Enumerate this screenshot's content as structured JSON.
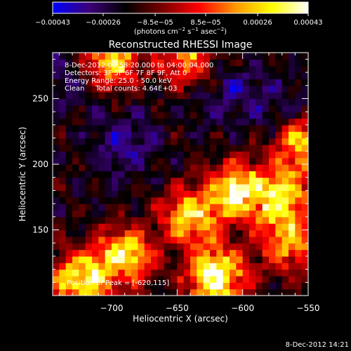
{
  "chart_data": {
    "type": "heatmap",
    "title": "Reconstructed RHESSI Image",
    "xlabel": "Heliocentric X (arcsec)",
    "ylabel": "Heliocentric Y (arcsec)",
    "x_range": [
      -745,
      -550
    ],
    "y_range": [
      100,
      285
    ],
    "x_ticks": [
      -700,
      -650,
      -600,
      -550
    ],
    "y_ticks": [
      150,
      200,
      250
    ],
    "x_tick_labels": [
      "−700",
      "−650",
      "−600",
      "−550"
    ],
    "y_tick_labels": [
      "150",
      "200",
      "250"
    ],
    "colorbar": {
      "range": [
        -0.00043,
        0.00043
      ],
      "ticks": [
        -0.00043,
        -0.00026,
        -8.5e-05,
        8.5e-05,
        0.00026,
        0.00043
      ],
      "tick_labels": [
        "−0.00043",
        "−0.00026",
        "−8.5e−05",
        "8.5e−05",
        "0.00026",
        "0.00043"
      ],
      "unit_label": {
        "prefix": "(photons cm",
        "exp1": "−2",
        "mid1": " s",
        "exp2": "−1",
        "mid2": " asec",
        "exp3": "−2",
        "suffix": ")"
      },
      "colors": [
        "#0000ff",
        "#3c0078",
        "#000000",
        "#780000",
        "#ff0000",
        "#ff9600",
        "#ffff00",
        "#ffffff"
      ]
    },
    "annotations": [
      "8-Dec-2012 03:58:20.000 to 04:00:04.000",
      "Detectors: 3F 5F 6F 7F 8F 9F, Att 0",
      "Energy Range: 25.0 - 50.0 keV",
      "Clean     Total counts: 4.64E+03"
    ],
    "peak_label": "Position of Peak = [-620,115]",
    "peak_position": [
      -620,
      115
    ],
    "bright_regions": [
      {
        "x": -620,
        "y": 115,
        "peak": 1.0
      },
      {
        "x": -690,
        "y": 130,
        "peak": 0.8
      },
      {
        "x": -725,
        "y": 112,
        "peak": 0.85
      },
      {
        "x": -605,
        "y": 180,
        "peak": 0.82
      },
      {
        "x": -570,
        "y": 175,
        "peak": 0.75
      },
      {
        "x": -640,
        "y": 160,
        "peak": 0.7
      },
      {
        "x": -555,
        "y": 215,
        "peak": 0.65
      },
      {
        "x": -700,
        "y": 280,
        "peak": 0.72
      },
      {
        "x": -642,
        "y": 282,
        "peak": 0.55
      },
      {
        "x": -565,
        "y": 140,
        "peak": 0.6
      }
    ],
    "dim_regions": [
      {
        "x": -690,
        "y": 215,
        "depth": 0.8
      },
      {
        "x": -610,
        "y": 255,
        "depth": 0.7
      },
      {
        "x": -735,
        "y": 265,
        "depth": 0.6
      },
      {
        "x": -570,
        "y": 245,
        "depth": 0.55
      }
    ]
  },
  "footer": {
    "timestamp": "8-Dec-2012 14:21"
  }
}
